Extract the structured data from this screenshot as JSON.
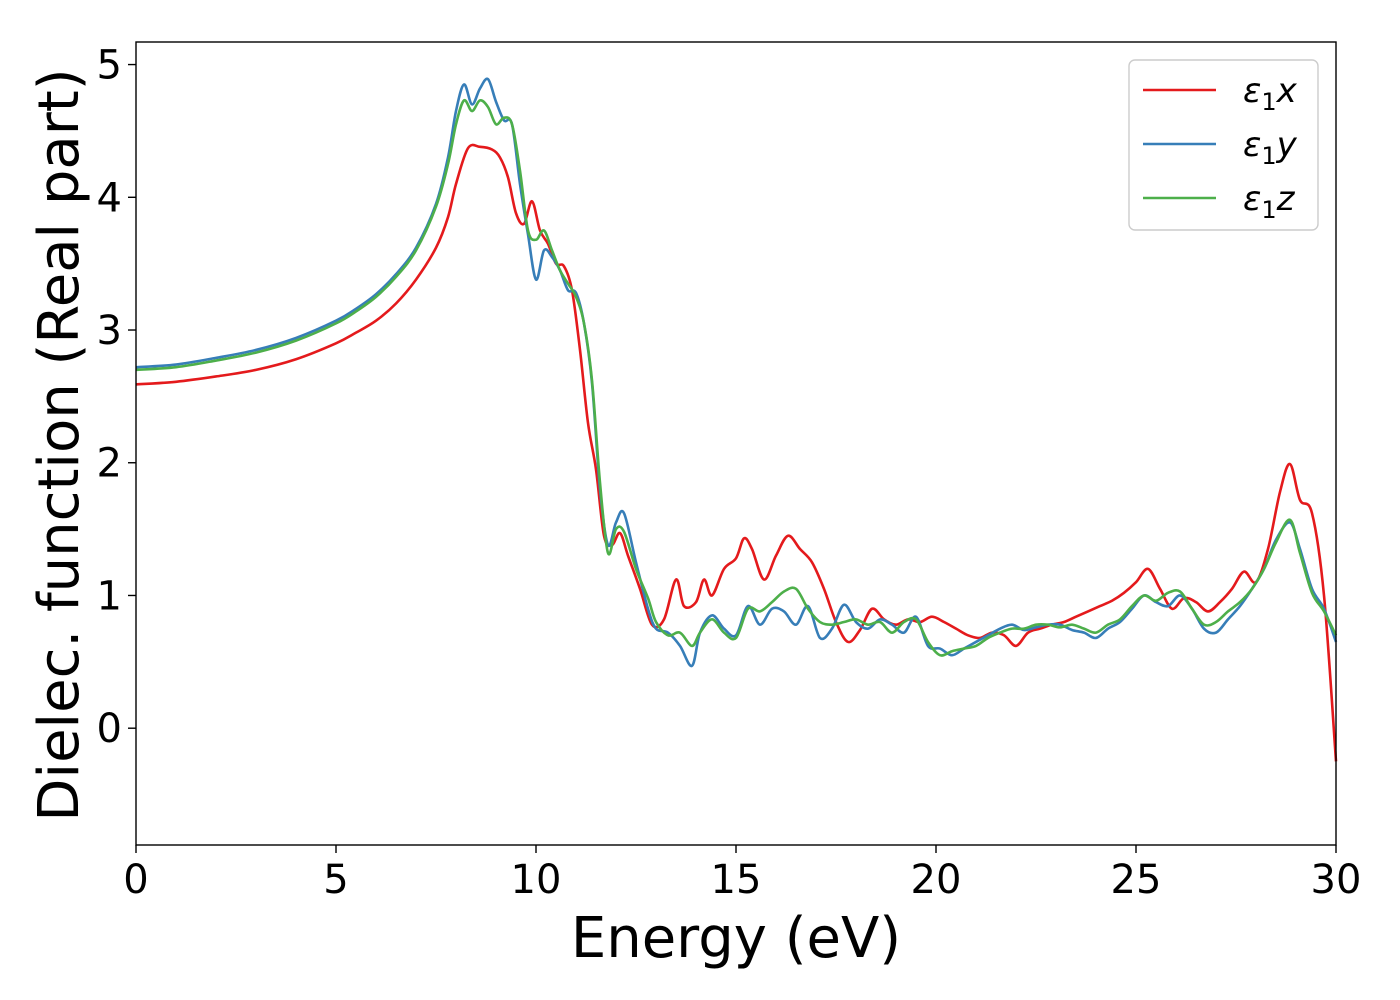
{
  "chart_data": {
    "type": "line",
    "xlabel": "Energy (eV)",
    "ylabel": "Dielec. function (Real part)",
    "xlim": [
      0,
      30
    ],
    "ylim": [
      -0.88,
      5.17
    ],
    "xticks": [
      0,
      5,
      10,
      15,
      20,
      25,
      30
    ],
    "yticks": [
      0,
      1,
      2,
      3,
      4,
      5
    ],
    "grid": false,
    "legend_position": "top-right",
    "series": [
      {
        "name": "ε₁x",
        "name_base": "ε",
        "name_sub": "1",
        "name_var": "x",
        "color": "#e41a1c",
        "x": [
          0,
          1,
          2,
          3,
          4,
          5,
          5.5,
          6,
          6.5,
          7,
          7.5,
          7.8,
          8.0,
          8.3,
          8.6,
          8.9,
          9.1,
          9.3,
          9.5,
          9.7,
          9.9,
          10.1,
          10.3,
          10.5,
          10.7,
          10.9,
          11.1,
          11.3,
          11.5,
          11.7,
          11.9,
          12.1,
          12.3,
          12.6,
          12.9,
          13.2,
          13.5,
          13.7,
          14.0,
          14.2,
          14.4,
          14.7,
          15.0,
          15.2,
          15.4,
          15.7,
          16.0,
          16.3,
          16.6,
          16.9,
          17.2,
          17.5,
          17.8,
          18.1,
          18.4,
          18.7,
          19.0,
          19.3,
          19.6,
          19.9,
          20.2,
          20.5,
          20.8,
          21.1,
          21.4,
          21.7,
          22.0,
          22.3,
          22.6,
          22.9,
          23.2,
          23.5,
          23.8,
          24.1,
          24.4,
          24.7,
          25.0,
          25.3,
          25.6,
          25.9,
          26.2,
          26.5,
          26.8,
          27.1,
          27.4,
          27.7,
          28.0,
          28.3,
          28.6,
          28.85,
          29.1,
          29.4,
          29.7,
          30.0
        ],
        "y": [
          2.59,
          2.61,
          2.65,
          2.7,
          2.78,
          2.9,
          2.98,
          3.07,
          3.2,
          3.38,
          3.62,
          3.85,
          4.1,
          4.37,
          4.38,
          4.36,
          4.3,
          4.15,
          3.88,
          3.8,
          3.97,
          3.75,
          3.65,
          3.5,
          3.48,
          3.3,
          2.85,
          2.3,
          1.95,
          1.45,
          1.38,
          1.47,
          1.3,
          1.05,
          0.78,
          0.82,
          1.12,
          0.92,
          0.95,
          1.12,
          1.0,
          1.2,
          1.28,
          1.43,
          1.35,
          1.12,
          1.3,
          1.45,
          1.35,
          1.25,
          1.05,
          0.8,
          0.65,
          0.74,
          0.9,
          0.82,
          0.78,
          0.82,
          0.8,
          0.84,
          0.8,
          0.75,
          0.7,
          0.68,
          0.72,
          0.7,
          0.62,
          0.72,
          0.75,
          0.78,
          0.8,
          0.84,
          0.88,
          0.92,
          0.96,
          1.02,
          1.1,
          1.2,
          1.05,
          0.9,
          0.98,
          0.95,
          0.88,
          0.95,
          1.05,
          1.18,
          1.1,
          1.35,
          1.78,
          1.99,
          1.72,
          1.62,
          1.0,
          -0.25
        ]
      },
      {
        "name": "ε₁y",
        "name_base": "ε",
        "name_sub": "1",
        "name_var": "y",
        "color": "#377eb8",
        "x": [
          0,
          1,
          2,
          3,
          4,
          5,
          5.5,
          6,
          6.5,
          7,
          7.5,
          7.8,
          8.0,
          8.2,
          8.4,
          8.6,
          8.8,
          9.0,
          9.2,
          9.4,
          9.6,
          9.8,
          10.0,
          10.2,
          10.4,
          10.6,
          10.8,
          11.0,
          11.2,
          11.4,
          11.6,
          11.8,
          12.0,
          12.2,
          12.5,
          12.8,
          13.0,
          13.3,
          13.6,
          13.9,
          14.1,
          14.4,
          14.7,
          15.0,
          15.3,
          15.6,
          15.9,
          16.2,
          16.5,
          16.8,
          17.1,
          17.4,
          17.7,
          18.0,
          18.3,
          18.6,
          18.9,
          19.2,
          19.5,
          19.8,
          20.1,
          20.4,
          20.7,
          21.0,
          21.3,
          21.6,
          21.9,
          22.2,
          22.5,
          22.8,
          23.1,
          23.4,
          23.7,
          24.0,
          24.3,
          24.6,
          24.9,
          25.2,
          25.5,
          25.8,
          26.1,
          26.4,
          26.7,
          27.0,
          27.3,
          27.6,
          27.9,
          28.2,
          28.5,
          28.85,
          29.1,
          29.4,
          29.7,
          30.0
        ],
        "y": [
          2.72,
          2.74,
          2.79,
          2.85,
          2.94,
          3.07,
          3.16,
          3.27,
          3.42,
          3.62,
          3.95,
          4.3,
          4.65,
          4.85,
          4.7,
          4.82,
          4.89,
          4.72,
          4.58,
          4.55,
          4.1,
          3.72,
          3.38,
          3.6,
          3.55,
          3.45,
          3.3,
          3.28,
          3.05,
          2.6,
          1.8,
          1.38,
          1.55,
          1.62,
          1.25,
          0.9,
          0.75,
          0.72,
          0.62,
          0.47,
          0.72,
          0.85,
          0.75,
          0.7,
          0.92,
          0.78,
          0.9,
          0.88,
          0.78,
          0.92,
          0.68,
          0.75,
          0.93,
          0.8,
          0.75,
          0.82,
          0.78,
          0.72,
          0.84,
          0.62,
          0.6,
          0.55,
          0.6,
          0.65,
          0.7,
          0.75,
          0.78,
          0.74,
          0.76,
          0.78,
          0.78,
          0.74,
          0.72,
          0.68,
          0.75,
          0.8,
          0.9,
          1.0,
          0.95,
          0.92,
          1.0,
          0.9,
          0.75,
          0.72,
          0.82,
          0.92,
          1.05,
          1.2,
          1.42,
          1.55,
          1.35,
          1.05,
          0.9,
          0.65
        ]
      },
      {
        "name": "ε₁z",
        "name_base": "ε",
        "name_sub": "1",
        "name_var": "z",
        "color": "#4daf4a",
        "x": [
          0,
          1,
          2,
          3,
          4,
          5,
          5.5,
          6,
          6.5,
          7,
          7.5,
          7.8,
          8.0,
          8.2,
          8.4,
          8.6,
          8.8,
          9.0,
          9.2,
          9.4,
          9.6,
          9.8,
          10.0,
          10.2,
          10.4,
          10.6,
          10.8,
          11.0,
          11.2,
          11.4,
          11.6,
          11.8,
          12.0,
          12.2,
          12.5,
          12.8,
          13.0,
          13.3,
          13.6,
          13.9,
          14.1,
          14.4,
          14.7,
          15.0,
          15.3,
          15.6,
          15.9,
          16.2,
          16.5,
          16.8,
          17.1,
          17.4,
          17.7,
          18.0,
          18.3,
          18.6,
          18.9,
          19.2,
          19.5,
          19.8,
          20.1,
          20.4,
          20.7,
          21.0,
          21.3,
          21.6,
          21.9,
          22.2,
          22.5,
          22.8,
          23.1,
          23.4,
          23.7,
          24.0,
          24.3,
          24.6,
          24.9,
          25.2,
          25.5,
          25.8,
          26.1,
          26.4,
          26.7,
          27.0,
          27.3,
          27.6,
          27.9,
          28.2,
          28.5,
          28.85,
          29.1,
          29.4,
          29.7,
          30.0
        ],
        "y": [
          2.7,
          2.72,
          2.77,
          2.83,
          2.92,
          3.05,
          3.14,
          3.25,
          3.4,
          3.6,
          3.93,
          4.25,
          4.55,
          4.73,
          4.65,
          4.73,
          4.68,
          4.55,
          4.6,
          4.55,
          4.2,
          3.75,
          3.68,
          3.75,
          3.6,
          3.45,
          3.35,
          3.25,
          3.05,
          2.62,
          1.85,
          1.32,
          1.5,
          1.48,
          1.2,
          0.98,
          0.8,
          0.7,
          0.72,
          0.62,
          0.72,
          0.82,
          0.72,
          0.68,
          0.9,
          0.88,
          0.95,
          1.03,
          1.05,
          0.9,
          0.8,
          0.78,
          0.8,
          0.82,
          0.78,
          0.8,
          0.72,
          0.8,
          0.82,
          0.65,
          0.55,
          0.58,
          0.6,
          0.62,
          0.68,
          0.72,
          0.75,
          0.75,
          0.78,
          0.78,
          0.76,
          0.78,
          0.75,
          0.72,
          0.78,
          0.82,
          0.92,
          1.0,
          0.96,
          1.02,
          1.03,
          0.9,
          0.78,
          0.8,
          0.88,
          0.95,
          1.05,
          1.2,
          1.4,
          1.57,
          1.32,
          1.02,
          0.88,
          0.7
        ]
      }
    ]
  }
}
